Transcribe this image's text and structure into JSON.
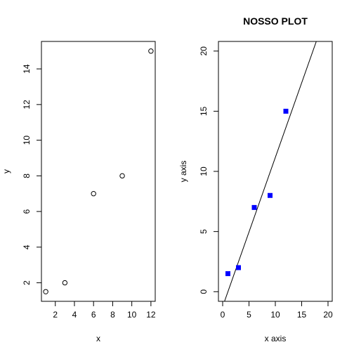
{
  "chart_data": [
    {
      "type": "scatter",
      "title": "",
      "xlabel": "x",
      "ylabel": "y",
      "xlim": [
        0.55,
        12.45
      ],
      "ylim": [
        0.96,
        15.54
      ],
      "xticks": [
        2,
        4,
        6,
        8,
        10,
        12
      ],
      "yticks": [
        2,
        4,
        6,
        8,
        10,
        12,
        14
      ],
      "grid": false,
      "marker": "open-circle",
      "point_color": "#000000",
      "series": [
        {
          "x": [
            1,
            3,
            6,
            9,
            12
          ],
          "y": [
            1.5,
            2,
            7,
            8,
            15
          ]
        }
      ]
    },
    {
      "type": "scatter",
      "title": "NOSSO PLOT",
      "xlabel": "x axis",
      "ylabel": "y axis",
      "xlim": [
        -0.8,
        20.8
      ],
      "ylim": [
        -0.8,
        20.8
      ],
      "xticks": [
        0,
        5,
        10,
        15,
        20
      ],
      "yticks": [
        0,
        5,
        10,
        15,
        20
      ],
      "grid": false,
      "marker": "filled-square",
      "point_color": "#0000ff",
      "series": [
        {
          "x": [
            1,
            3,
            6,
            9,
            12
          ],
          "y": [
            1.5,
            2,
            7,
            8,
            15
          ]
        }
      ],
      "line": {
        "type": "abline",
        "intercept": -1.24,
        "slope": 1.24,
        "color": "#000000"
      }
    }
  ]
}
